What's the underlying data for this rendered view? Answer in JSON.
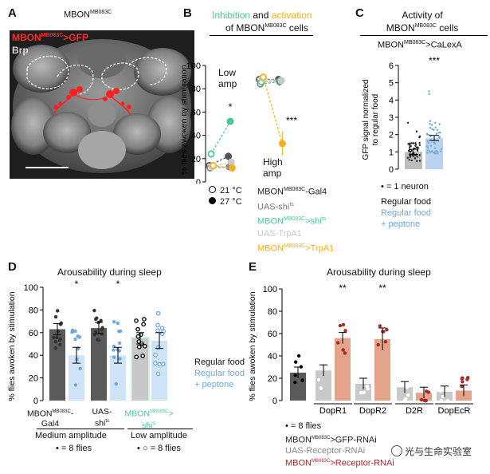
{
  "colors": {
    "green": "#4fc3a1",
    "orange": "#f2b01e",
    "blue": "#6fa8dc",
    "red": "#e0242a",
    "darkred": "#a8282c",
    "gray": "#8a8a8a",
    "dark": "#555555",
    "salmon": "#e3a48a",
    "lightgray": "#c9c9c9",
    "lightblue": "#cfe3f6",
    "lightgreen": "#cdeee1"
  },
  "panelA": {
    "letter": "A",
    "title": "MBON",
    "title_sup": "MB083C",
    "label1": "MBON",
    "label1_sup": "MB083C",
    "label1_suffix": ">GFP",
    "label2": "Brp"
  },
  "panelB": {
    "letter": "B",
    "title_green": "Inhibition",
    "title_and": " and ",
    "title_orange": "activation",
    "title_line2": "of MBON",
    "title_line2_sup": "MB083C",
    "title_line2_suffix": " cells",
    "ylabel": "% flies awoken by stimulation",
    "low_amp_1": "Low",
    "low_amp_2": "amp",
    "high_amp_1": "High",
    "high_amp_2": "amp",
    "sig_low": "*",
    "sig_high": "***",
    "legend_temp1": "21 °C",
    "legend_temp2": "27 °C",
    "legend_g1": "MBON",
    "legend_g1_sup": "MB083C",
    "legend_g1_suffix": "-Gal4",
    "legend_g2": "UAS-shi",
    "legend_g2_sup": "ts",
    "legend_g3": "MBON",
    "legend_g3_sup": "MB083C",
    "legend_g3_suffix": ">shi",
    "legend_g3_sup2": "ts",
    "legend_g4": "UAS-TrpA1",
    "legend_g5": "MBON",
    "legend_g5_sup": "MB083C",
    "legend_g5_suffix": ">TrpA1"
  },
  "panelC": {
    "letter": "C",
    "title1": "Activity of",
    "title2": "MBON",
    "title2_sup": "MB083C",
    "title2_suffix": " cells",
    "subtitle": "MBON",
    "subtitle_sup": "MB083C",
    "subtitle_suffix": ">CaLexA",
    "ylabel1": "GFP signal normalized",
    "ylabel2": "to regular food",
    "sig": "***",
    "legend_neuron": "• = 1 neuron",
    "cat1": "Regular food",
    "cat2a": "Regular food",
    "cat2b": "+ peptone"
  },
  "panelD": {
    "letter": "D",
    "title": "Arousability during sleep",
    "ylabel": "% flies awoken by stimulation",
    "sig1": "*",
    "sig2": "*",
    "xg1a": "MBON",
    "xg1a_sup": "MB083C",
    "xg1a_suffix": "-",
    "xg1b": "Gal4",
    "xg2a": "UAS-",
    "xg2b": "shi",
    "xg2b_sup": "ts",
    "xg3a": "MBON",
    "xg3a_sup": "MB083C",
    "xg3a_suffix": ">",
    "xg3b": "shi",
    "xg3b_sup": "ts",
    "amp_medium": "Medium amplitude",
    "amp_low": "Low amplitude",
    "legend_filled": "• = 8 flies",
    "legend_open": "• ○ = 8 flies",
    "food1": "Regular food",
    "food2a": "Regular food",
    "food2b": "+ peptone"
  },
  "panelE": {
    "letter": "E",
    "title": "Arousability during sleep",
    "ylabel": "% flies awoken by stimulation",
    "sig1": "**",
    "sig2": "**",
    "legend_dots": "• = 8 flies",
    "legend1": "MBON",
    "legend1_sup": "MB083C",
    "legend1_suffix": ">GFP-RNAi",
    "legend2": "UAS-Receptor-RNAi",
    "legend3": "MBON",
    "legend3_sup": "MB083C",
    "legend3_suffix": ">Receptor-RNAi",
    "watermark": "光与生命实验室"
  },
  "chart_data": [
    {
      "panel": "B",
      "type": "line",
      "title": "Inhibition and activation of MBON MB083C cells",
      "ylabel": "% flies awoken by stimulation",
      "ylim": [
        0,
        100
      ],
      "yticks": [
        0,
        20,
        40,
        60,
        80,
        100
      ],
      "x": [
        "21 °C",
        "27 °C",
        "21 °C",
        "27 °C"
      ],
      "groups": [
        "Low amp",
        "Low amp",
        "High amp",
        "High amp"
      ],
      "series": [
        {
          "name": "MBON MB083C-Gal4",
          "values": [
            14,
            22,
            88,
            88
          ]
        },
        {
          "name": "UAS-shi ts",
          "values": [
            12,
            13,
            84,
            86
          ]
        },
        {
          "name": "MBON MB083C>shi ts",
          "values": [
            24,
            52,
            86,
            87
          ]
        },
        {
          "name": "UAS-TrpA1",
          "values": [
            13,
            17,
            89,
            87
          ]
        },
        {
          "name": "MBON MB083C>TrpA1",
          "values": [
            14,
            12,
            90,
            33
          ]
        }
      ]
    },
    {
      "panel": "C",
      "type": "bar",
      "title": "Activity of MBON MB083C cells",
      "ylabel": "GFP signal normalized to regular food",
      "ylim": [
        0,
        6
      ],
      "yticks": [
        0,
        1,
        2,
        3,
        4,
        5,
        6
      ],
      "categories": [
        "Regular food",
        "Regular food + peptone"
      ],
      "values": [
        1.0,
        1.8
      ]
    },
    {
      "panel": "D",
      "type": "bar",
      "title": "Arousability during sleep",
      "ylabel": "% flies awoken by stimulation",
      "ylim": [
        0,
        100
      ],
      "yticks": [
        0,
        20,
        40,
        60,
        80,
        100
      ],
      "categories": [
        "MBON MB083C-Gal4",
        "MBON MB083C-Gal4",
        "UAS-shi ts",
        "UAS-shi ts",
        "MBON MB083C>shi ts",
        "MBON MB083C>shi ts"
      ],
      "food": [
        "Regular food",
        "Regular food + peptone",
        "Regular food",
        "Regular food + peptone",
        "Regular food",
        "Regular food + peptone"
      ],
      "values": [
        63,
        40,
        64,
        40,
        55,
        53
      ]
    },
    {
      "panel": "E",
      "type": "bar",
      "title": "Arousability during sleep",
      "ylabel": "% flies awoken by stimulation",
      "ylim": [
        0,
        100
      ],
      "yticks": [
        0,
        20,
        40,
        60,
        80,
        100
      ],
      "categories": [
        "GFP-RNAi",
        "UAS-DopR1",
        "DopR1",
        "UAS-DopR2",
        "DopR2",
        "UAS-D2R",
        "D2R",
        "UAS-DopEcR",
        "DopEcR"
      ],
      "groups": [
        "",
        "DopR1",
        "DopR1",
        "DopR2",
        "DopR2",
        "D2R",
        "D2R",
        "DopEcR",
        "DopEcR"
      ],
      "values": [
        25,
        27,
        56,
        15,
        55,
        12,
        7,
        8,
        9
      ]
    }
  ]
}
